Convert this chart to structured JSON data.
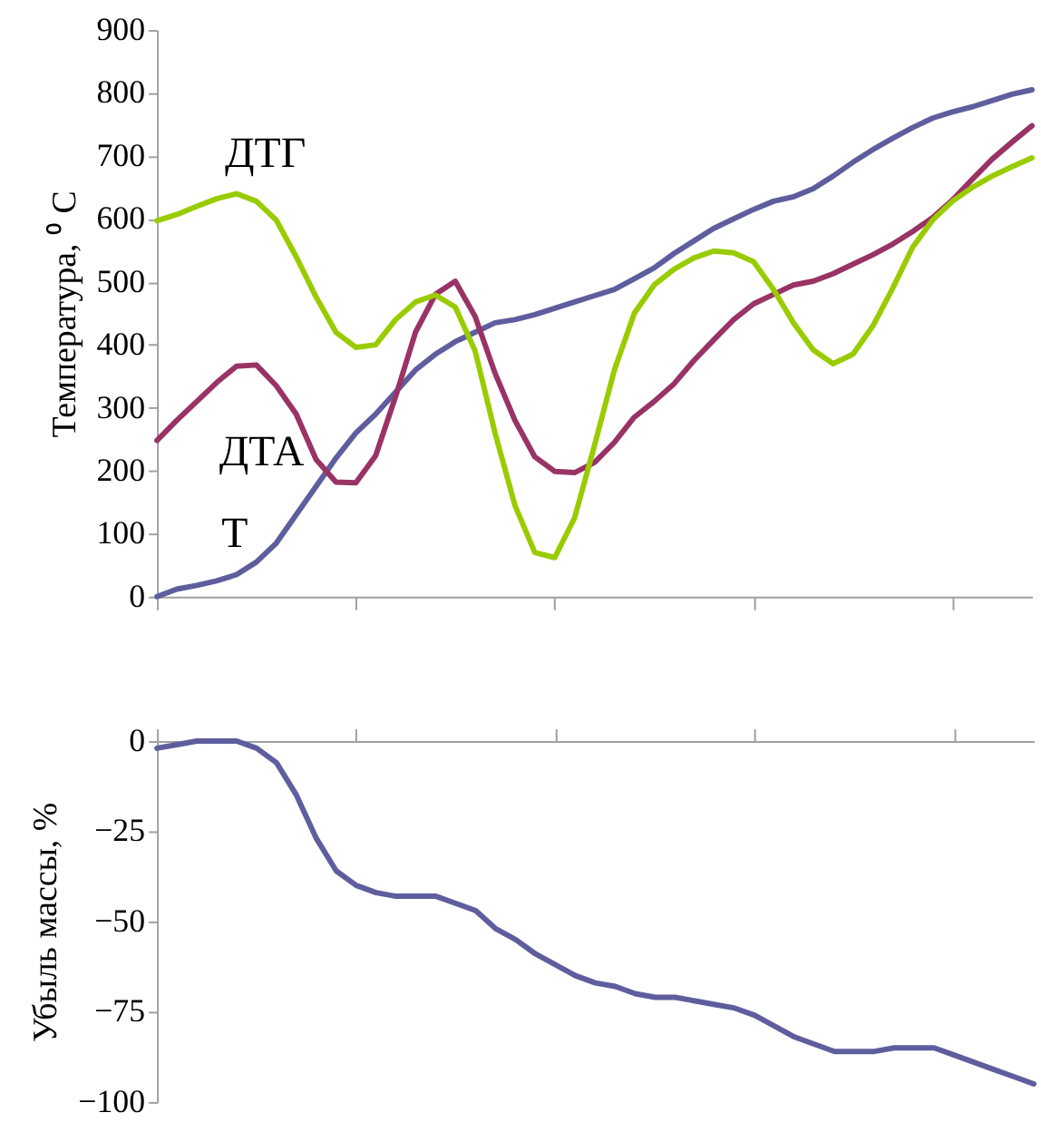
{
  "chart_data": [
    {
      "type": "line",
      "ylabel": "Температура, ⁰ С",
      "categories": [
        null,
        null,
        null,
        null,
        null,
        null,
        null,
        null,
        null,
        null,
        null,
        null,
        null,
        null,
        null,
        null,
        null,
        null,
        null,
        null,
        null,
        null,
        null,
        null,
        null,
        null,
        null,
        null,
        null,
        null,
        null,
        null,
        null,
        null,
        null,
        null,
        null,
        null,
        null,
        null,
        null,
        null,
        null,
        null,
        null
      ],
      "ylim": [
        0,
        900
      ],
      "yticks": [
        0,
        100,
        200,
        300,
        400,
        500,
        600,
        700,
        800,
        900
      ],
      "grid": false,
      "legend": false,
      "tick_labels": "y",
      "marker": "none",
      "line_style": "solid",
      "series": [
        {
          "name": "Т",
          "color": "#5e5e9e",
          "values": [
            0,
            12,
            18,
            25,
            35,
            55,
            85,
            130,
            175,
            220,
            260,
            290,
            325,
            360,
            385,
            405,
            420,
            435,
            440,
            448,
            458,
            468,
            478,
            488,
            505,
            522,
            545,
            565,
            585,
            600,
            615,
            628,
            635,
            648,
            668,
            690,
            710,
            728,
            745,
            760,
            770,
            778,
            788,
            798,
            805
          ]
        },
        {
          "name": "ДТА",
          "color": "#993366",
          "values": [
            248,
            280,
            310,
            340,
            366,
            368,
            335,
            290,
            218,
            182,
            181,
            224,
            318,
            420,
            480,
            501,
            445,
            355,
            280,
            222,
            199,
            197,
            213,
            245,
            285,
            310,
            338,
            375,
            408,
            440,
            465,
            480,
            495,
            501,
            513,
            528,
            543,
            560,
            580,
            602,
            630,
            663,
            695,
            722,
            748
          ]
        },
        {
          "name": "ДТГ",
          "color": "#99cc00",
          "values": [
            597,
            607,
            620,
            632,
            640,
            628,
            598,
            540,
            476,
            420,
            396,
            400,
            440,
            468,
            479,
            460,
            390,
            260,
            145,
            70,
            62,
            125,
            240,
            360,
            450,
            495,
            520,
            538,
            549,
            546,
            532,
            488,
            435,
            392,
            370,
            385,
            430,
            490,
            555,
            598,
            628,
            650,
            668,
            683,
            697
          ]
        }
      ]
    },
    {
      "type": "line",
      "ylabel": "Убыль массы, %",
      "categories": [
        null,
        null,
        null,
        null,
        null,
        null,
        null,
        null,
        null,
        null,
        null,
        null,
        null,
        null,
        null,
        null,
        null,
        null,
        null,
        null,
        null,
        null,
        null,
        null,
        null,
        null,
        null,
        null,
        null,
        null,
        null,
        null,
        null,
        null,
        null,
        null,
        null,
        null,
        null,
        null,
        null,
        null,
        null,
        null,
        null
      ],
      "ylim": [
        -100,
        0
      ],
      "yticks": [
        -100,
        -75,
        -50,
        -25,
        0
      ],
      "grid": false,
      "legend": false,
      "tick_labels": "y",
      "marker": "none",
      "line_style": "solid",
      "series": [
        {
          "color": "#5e5e9e",
          "values": [
            -2,
            -1,
            0,
            0,
            0,
            -2,
            -6,
            -15,
            -27,
            -36,
            -40,
            -42,
            -43,
            -43,
            -43,
            -45,
            -47,
            -52,
            -55,
            -59,
            -62,
            -65,
            -67,
            -68,
            -70,
            -71,
            -71,
            -72,
            -73,
            -74,
            -76,
            -79,
            -82,
            -84,
            -86,
            -86,
            -86,
            -85,
            -85,
            -85,
            -87,
            -89,
            -91,
            -93,
            -95
          ]
        }
      ]
    }
  ]
}
